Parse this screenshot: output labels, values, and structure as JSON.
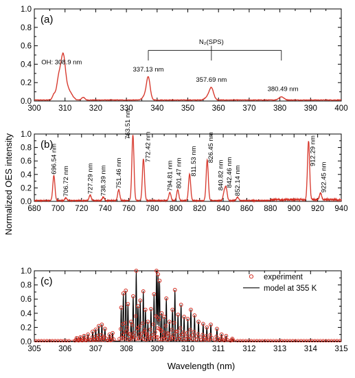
{
  "figure": {
    "ylabel": "Normalized OES intensity",
    "xlabel": "Wavelength (nm)"
  },
  "colors": {
    "experiment": "#d42a1e",
    "model": "#000000",
    "axis": "#000000"
  },
  "chart_data": [
    {
      "id": "a",
      "type": "line",
      "panel_label": "(a)",
      "xlim": [
        300,
        400
      ],
      "ylim": [
        0.0,
        1.0
      ],
      "xticks": [
        300,
        310,
        320,
        330,
        340,
        350,
        360,
        370,
        380,
        390,
        400
      ],
      "yticks": [
        "0.0",
        "0.2",
        "0.4",
        "0.6",
        "0.8",
        "1.0"
      ],
      "peaks": [
        {
          "x": 306.4,
          "y": 0.06,
          "w": 0.5
        },
        {
          "x": 307.8,
          "y": 0.18,
          "w": 0.6
        },
        {
          "x": 308.9,
          "y": 0.28,
          "w": 0.7
        },
        {
          "x": 309.6,
          "y": 0.26,
          "w": 0.6
        },
        {
          "x": 310.6,
          "y": 0.12,
          "w": 0.8
        },
        {
          "x": 312.0,
          "y": 0.05,
          "w": 0.8
        },
        {
          "x": 315.9,
          "y": 0.03,
          "w": 0.5
        },
        {
          "x": 337.13,
          "y": 0.24,
          "w": 0.6
        },
        {
          "x": 336.0,
          "y": 0.04,
          "w": 0.8
        },
        {
          "x": 357.69,
          "y": 0.13,
          "w": 0.7
        },
        {
          "x": 356.3,
          "y": 0.03,
          "w": 0.8
        },
        {
          "x": 380.49,
          "y": 0.035,
          "w": 0.8
        }
      ],
      "annotations": [
        {
          "text": "OH: 308.9 nm",
          "x": 308.9,
          "y": 0.4
        },
        {
          "text": "337.13 nm",
          "x": 337.13,
          "y": 0.32
        },
        {
          "text": "357.69 nm",
          "x": 357.69,
          "y": 0.21
        },
        {
          "text": "380.49 nm",
          "x": 381.0,
          "y": 0.11
        }
      ],
      "group_label": {
        "text": "N₂(SPS)",
        "x": 357.69,
        "y": 0.62
      },
      "bracket": {
        "x": [
          337.13,
          357.69,
          380.49
        ],
        "y": 0.55,
        "drop_to": 0.44
      }
    },
    {
      "id": "b",
      "type": "line",
      "panel_label": "(b)",
      "xlim": [
        680,
        940
      ],
      "ylim": [
        0.0,
        1.0
      ],
      "xticks": [
        680,
        700,
        720,
        740,
        760,
        780,
        800,
        820,
        840,
        860,
        880,
        900,
        920,
        940
      ],
      "yticks": [
        "0.0",
        "0.2",
        "0.4",
        "0.6",
        "0.8",
        "1.0"
      ],
      "peaks": [
        {
          "x": 696.54,
          "y": 0.37,
          "w": 0.9
        },
        {
          "x": 706.72,
          "y": 0.04,
          "w": 0.9
        },
        {
          "x": 727.29,
          "y": 0.08,
          "w": 0.9
        },
        {
          "x": 738.39,
          "y": 0.05,
          "w": 0.9
        },
        {
          "x": 751.46,
          "y": 0.16,
          "w": 0.9
        },
        {
          "x": 763.51,
          "y": 0.97,
          "w": 0.9
        },
        {
          "x": 772.42,
          "y": 0.62,
          "w": 0.9
        },
        {
          "x": 794.81,
          "y": 0.12,
          "w": 0.9
        },
        {
          "x": 801.47,
          "y": 0.16,
          "w": 0.9
        },
        {
          "x": 811.53,
          "y": 0.39,
          "w": 0.9
        },
        {
          "x": 826.45,
          "y": 0.6,
          "w": 0.9
        },
        {
          "x": 840.82,
          "y": 0.12,
          "w": 0.9
        },
        {
          "x": 842.46,
          "y": 0.18,
          "w": 0.9
        },
        {
          "x": 852.14,
          "y": 0.05,
          "w": 0.9
        },
        {
          "x": 912.29,
          "y": 0.87,
          "w": 0.9
        },
        {
          "x": 922.45,
          "y": 0.1,
          "w": 0.9
        }
      ],
      "annotations": [
        {
          "text": "696.54 nm",
          "x": 696.54,
          "y": 0.4,
          "rotate": true
        },
        {
          "text": "706.72 nm",
          "x": 706.72,
          "y": 0.07,
          "rotate": true
        },
        {
          "text": "727.29 nm",
          "x": 727.29,
          "y": 0.11,
          "rotate": true
        },
        {
          "text": "738.39 nm",
          "x": 738.39,
          "y": 0.08,
          "rotate": true
        },
        {
          "text": "751.46 nm",
          "x": 751.46,
          "y": 0.19,
          "rotate": true
        },
        {
          "text": "763.51 nm",
          "x": 759.0,
          "y": 0.92,
          "rotate": true
        },
        {
          "text": "772.42 nm",
          "x": 776.2,
          "y": 0.58,
          "rotate": true
        },
        {
          "text": "794.81 nm",
          "x": 794.81,
          "y": 0.15,
          "rotate": true
        },
        {
          "text": "801.47 nm",
          "x": 802.3,
          "y": 0.19,
          "rotate": true
        },
        {
          "text": "811.53 nm",
          "x": 814.8,
          "y": 0.37,
          "rotate": true
        },
        {
          "text": "826.45 nm",
          "x": 829.5,
          "y": 0.57,
          "rotate": true
        },
        {
          "text": "840.82 nm",
          "x": 837.8,
          "y": 0.16,
          "rotate": true
        },
        {
          "text": "842.46 nm",
          "x": 845.2,
          "y": 0.2,
          "rotate": true
        },
        {
          "text": "852.14 nm",
          "x": 852.14,
          "y": 0.08,
          "rotate": true
        },
        {
          "text": "912.29 nm",
          "x": 916.0,
          "y": 0.52,
          "rotate": true
        },
        {
          "text": "922.45 nm",
          "x": 925.3,
          "y": 0.13,
          "rotate": true
        }
      ]
    },
    {
      "id": "c",
      "type": "line",
      "panel_label": "(c)",
      "xlim": [
        305,
        315
      ],
      "ylim": [
        0.0,
        1.0
      ],
      "xticks": [
        305,
        306,
        307,
        308,
        309,
        310,
        311,
        312,
        313,
        314,
        315
      ],
      "yticks": [
        "0.0",
        "0.2",
        "0.4",
        "0.6",
        "0.8",
        "1.0"
      ],
      "xlabel": "Wavelength (nm)",
      "series": [
        {
          "name": "experiment",
          "style": "markers"
        },
        {
          "name": "model at 355 K",
          "style": "line"
        }
      ],
      "legend_position": "right",
      "lines": [
        {
          "x": 306.38,
          "y": 0.05
        },
        {
          "x": 306.5,
          "y": 0.06
        },
        {
          "x": 306.62,
          "y": 0.08
        },
        {
          "x": 306.75,
          "y": 0.1
        },
        {
          "x": 306.9,
          "y": 0.14
        },
        {
          "x": 307.0,
          "y": 0.17
        },
        {
          "x": 307.1,
          "y": 0.22
        },
        {
          "x": 307.2,
          "y": 0.24
        },
        {
          "x": 307.3,
          "y": 0.18
        },
        {
          "x": 307.45,
          "y": 0.1
        },
        {
          "x": 307.55,
          "y": 0.12
        },
        {
          "x": 307.83,
          "y": 0.48
        },
        {
          "x": 307.9,
          "y": 0.68
        },
        {
          "x": 307.98,
          "y": 0.72
        },
        {
          "x": 308.05,
          "y": 0.53
        },
        {
          "x": 308.15,
          "y": 0.28
        },
        {
          "x": 308.22,
          "y": 0.64
        },
        {
          "x": 308.32,
          "y": 1.0
        },
        {
          "x": 308.38,
          "y": 0.5
        },
        {
          "x": 308.45,
          "y": 0.58
        },
        {
          "x": 308.55,
          "y": 0.71
        },
        {
          "x": 308.62,
          "y": 0.45
        },
        {
          "x": 308.7,
          "y": 0.28
        },
        {
          "x": 308.8,
          "y": 0.46
        },
        {
          "x": 308.9,
          "y": 0.67
        },
        {
          "x": 308.98,
          "y": 1.0
        },
        {
          "x": 309.03,
          "y": 0.95
        },
        {
          "x": 309.08,
          "y": 0.86
        },
        {
          "x": 309.15,
          "y": 0.4
        },
        {
          "x": 309.23,
          "y": 0.35
        },
        {
          "x": 309.3,
          "y": 0.61
        },
        {
          "x": 309.4,
          "y": 0.28
        },
        {
          "x": 309.5,
          "y": 0.45
        },
        {
          "x": 309.58,
          "y": 0.73
        },
        {
          "x": 309.68,
          "y": 0.38
        },
        {
          "x": 309.78,
          "y": 0.52
        },
        {
          "x": 309.88,
          "y": 0.35
        },
        {
          "x": 310.0,
          "y": 0.32
        },
        {
          "x": 310.1,
          "y": 0.45
        },
        {
          "x": 310.22,
          "y": 0.37
        },
        {
          "x": 310.35,
          "y": 0.28
        },
        {
          "x": 310.5,
          "y": 0.25
        },
        {
          "x": 310.62,
          "y": 0.2
        },
        {
          "x": 310.75,
          "y": 0.24
        },
        {
          "x": 310.95,
          "y": 0.18
        },
        {
          "x": 311.1,
          "y": 0.1
        },
        {
          "x": 311.25,
          "y": 0.08
        },
        {
          "x": 311.45,
          "y": 0.04
        }
      ]
    }
  ]
}
